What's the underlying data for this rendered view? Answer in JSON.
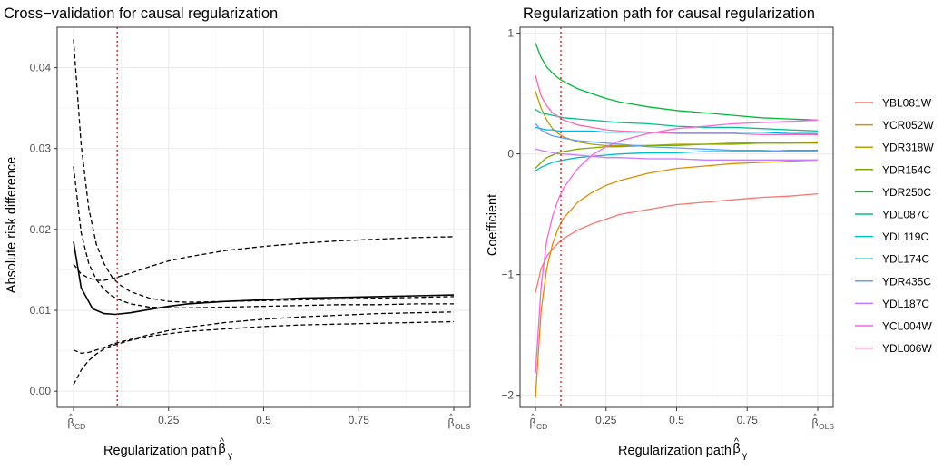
{
  "chart_data": [
    {
      "type": "line",
      "title": "Cross−validation for causal regularization",
      "xlabel_main": "Regularization path ",
      "xlabel_beta": "β",
      "xlabel_hat": "^",
      "xlabel_sub": "γ",
      "ylabel": "Absolute risk difference",
      "xlim": [
        0,
        1
      ],
      "ylim": [
        -0.002,
        0.045
      ],
      "x_ticks": [
        {
          "value": 0,
          "main": "β",
          "hat": "^",
          "sub": "CD"
        },
        {
          "value": 0.25,
          "main": "0.25"
        },
        {
          "value": 0.5,
          "main": "0.5"
        },
        {
          "value": 0.75,
          "main": "0.75"
        },
        {
          "value": 1,
          "main": "β",
          "hat": "^",
          "sub": "OLS"
        }
      ],
      "y_ticks": [
        {
          "value": 0,
          "label": "0.00"
        },
        {
          "value": 0.01,
          "label": "0.01"
        },
        {
          "value": 0.02,
          "label": "0.02"
        },
        {
          "value": 0.03,
          "label": "0.03"
        },
        {
          "value": 0.04,
          "label": "0.04"
        }
      ],
      "vline": {
        "x": 0.115,
        "color": "#ff0000"
      },
      "grid": true,
      "series": [
        {
          "style": "solid",
          "color": "#000000",
          "x": [
            0,
            0.02,
            0.05,
            0.08,
            0.11,
            0.15,
            0.2,
            0.25,
            0.3,
            0.4,
            0.5,
            0.6,
            0.7,
            0.8,
            0.9,
            1.0
          ],
          "y": [
            0.0185,
            0.0128,
            0.0102,
            0.0096,
            0.0095,
            0.0097,
            0.0101,
            0.0105,
            0.0108,
            0.0111,
            0.0113,
            0.0115,
            0.0116,
            0.0117,
            0.0118,
            0.0119
          ]
        },
        {
          "style": "dashed",
          "color": "#000000",
          "x": [
            0,
            0.02,
            0.04,
            0.06,
            0.08,
            0.1,
            0.12,
            0.15,
            0.2,
            0.25,
            0.3,
            0.4,
            0.5,
            0.6,
            0.7,
            0.8,
            0.9,
            1.0
          ],
          "y": [
            0.0435,
            0.0305,
            0.0226,
            0.0182,
            0.0158,
            0.0142,
            0.0132,
            0.0123,
            0.0115,
            0.0111,
            0.011,
            0.0111,
            0.0112,
            0.0113,
            0.0114,
            0.0115,
            0.0116,
            0.0117
          ]
        },
        {
          "style": "dashed",
          "color": "#000000",
          "x": [
            0,
            0.02,
            0.04,
            0.06,
            0.08,
            0.1,
            0.12,
            0.15,
            0.2,
            0.25,
            0.3,
            0.4,
            0.5,
            0.6,
            0.7,
            0.8,
            0.9,
            1.0
          ],
          "y": [
            0.0278,
            0.0196,
            0.0158,
            0.0138,
            0.0126,
            0.0118,
            0.0113,
            0.0108,
            0.0104,
            0.0103,
            0.0103,
            0.0104,
            0.0105,
            0.0106,
            0.0107,
            0.0107,
            0.0108,
            0.0108
          ]
        },
        {
          "style": "dashed",
          "color": "#000000",
          "x": [
            0,
            0.02,
            0.04,
            0.06,
            0.08,
            0.1,
            0.15,
            0.2,
            0.25,
            0.3,
            0.4,
            0.5,
            0.6,
            0.7,
            0.8,
            0.9,
            1.0
          ],
          "y": [
            0.0157,
            0.0145,
            0.014,
            0.0137,
            0.0137,
            0.0139,
            0.0146,
            0.0154,
            0.0161,
            0.0166,
            0.0174,
            0.0179,
            0.0183,
            0.0186,
            0.0188,
            0.019,
            0.0191
          ]
        },
        {
          "style": "dashed",
          "color": "#000000",
          "x": [
            0,
            0.02,
            0.04,
            0.06,
            0.08,
            0.1,
            0.15,
            0.2,
            0.25,
            0.3,
            0.4,
            0.5,
            0.6,
            0.7,
            0.8,
            0.9,
            1.0
          ],
          "y": [
            0.0051,
            0.0047,
            0.0048,
            0.0051,
            0.0054,
            0.0058,
            0.0064,
            0.007,
            0.0075,
            0.0079,
            0.0085,
            0.0089,
            0.0092,
            0.0094,
            0.0096,
            0.0097,
            0.0098
          ]
        },
        {
          "style": "dashed",
          "color": "#000000",
          "x": [
            0,
            0.02,
            0.04,
            0.06,
            0.08,
            0.1,
            0.15,
            0.2,
            0.25,
            0.3,
            0.4,
            0.5,
            0.6,
            0.7,
            0.8,
            0.9,
            1.0
          ],
          "y": [
            0.0008,
            0.0026,
            0.0038,
            0.0046,
            0.0052,
            0.0056,
            0.0063,
            0.0068,
            0.0071,
            0.0074,
            0.0077,
            0.008,
            0.0082,
            0.0083,
            0.0084,
            0.0085,
            0.0086
          ]
        }
      ]
    },
    {
      "type": "line",
      "title": "Regularization path for causal regularization",
      "xlabel_main": "Regularization path ",
      "xlabel_beta": "β",
      "xlabel_hat": "^",
      "xlabel_sub": "γ",
      "ylabel": "Coefficient",
      "xlim": [
        0,
        1
      ],
      "ylim": [
        -2.1,
        1.05
      ],
      "x_ticks": [
        {
          "value": 0,
          "main": "β",
          "hat": "^",
          "sub": "CD"
        },
        {
          "value": 0.25,
          "main": "0.25"
        },
        {
          "value": 0.5,
          "main": "0.5"
        },
        {
          "value": 0.75,
          "main": "0.75"
        },
        {
          "value": 1,
          "main": "β",
          "hat": "^",
          "sub": "OLS"
        }
      ],
      "y_ticks": [
        {
          "value": -2,
          "label": "−2"
        },
        {
          "value": -1,
          "label": "−1"
        },
        {
          "value": 0,
          "label": "0"
        },
        {
          "value": 1,
          "label": "1"
        }
      ],
      "vline": {
        "x": 0.09,
        "color": "#ff0000"
      },
      "grid": true,
      "x": [
        0,
        0.02,
        0.04,
        0.06,
        0.08,
        0.1,
        0.15,
        0.2,
        0.25,
        0.3,
        0.4,
        0.5,
        0.6,
        0.7,
        0.8,
        0.9,
        1.0
      ],
      "series": [
        {
          "name": "YBL081W",
          "color": "#F8766D",
          "values": [
            -1.15,
            -0.95,
            -0.85,
            -0.79,
            -0.74,
            -0.7,
            -0.63,
            -0.58,
            -0.54,
            -0.5,
            -0.46,
            -0.42,
            -0.4,
            -0.38,
            -0.36,
            -0.35,
            -0.33
          ]
        },
        {
          "name": "YCR052W",
          "color": "#DE8C00",
          "values": [
            -2.02,
            -1.3,
            -0.95,
            -0.75,
            -0.62,
            -0.53,
            -0.4,
            -0.32,
            -0.26,
            -0.22,
            -0.16,
            -0.12,
            -0.1,
            -0.08,
            -0.07,
            -0.06,
            -0.05
          ]
        },
        {
          "name": "YDR318W",
          "color": "#B79F00",
          "values": [
            0.52,
            0.38,
            0.28,
            0.21,
            0.17,
            0.14,
            0.1,
            0.08,
            0.07,
            0.07,
            0.07,
            0.08,
            0.08,
            0.09,
            0.09,
            0.09,
            0.1
          ]
        },
        {
          "name": "YDR154C",
          "color": "#7CAE00",
          "values": [
            -0.12,
            -0.07,
            -0.03,
            -0.01,
            0.01,
            0.02,
            0.04,
            0.05,
            0.06,
            0.06,
            0.07,
            0.07,
            0.08,
            0.08,
            0.09,
            0.09,
            0.09
          ]
        },
        {
          "name": "YDR250C",
          "color": "#00BA38",
          "values": [
            0.92,
            0.8,
            0.72,
            0.67,
            0.63,
            0.6,
            0.54,
            0.5,
            0.46,
            0.43,
            0.39,
            0.36,
            0.34,
            0.32,
            0.3,
            0.29,
            0.28
          ]
        },
        {
          "name": "YDL087C",
          "color": "#00C08B",
          "values": [
            0.37,
            0.34,
            0.33,
            0.32,
            0.31,
            0.3,
            0.29,
            0.28,
            0.27,
            0.26,
            0.25,
            0.23,
            0.22,
            0.22,
            0.21,
            0.2,
            0.19
          ]
        },
        {
          "name": "YDL119C",
          "color": "#00BFC4",
          "values": [
            -0.14,
            -0.11,
            -0.09,
            -0.07,
            -0.06,
            -0.05,
            -0.03,
            -0.02,
            -0.01,
            0.0,
            0.01,
            0.01,
            0.02,
            0.02,
            0.02,
            0.03,
            0.03
          ]
        },
        {
          "name": "YDL174C",
          "color": "#00B4F0",
          "values": [
            0.22,
            0.21,
            0.2,
            0.2,
            0.19,
            0.19,
            0.19,
            0.19,
            0.18,
            0.18,
            0.18,
            0.18,
            0.18,
            0.18,
            0.18,
            0.17,
            0.17
          ]
        },
        {
          "name": "YDR435C",
          "color": "#619CFF",
          "values": [
            0.25,
            0.2,
            0.17,
            0.15,
            0.14,
            0.13,
            0.11,
            0.1,
            0.09,
            0.08,
            0.06,
            0.05,
            0.04,
            0.03,
            0.03,
            0.02,
            0.02
          ]
        },
        {
          "name": "YDL187C",
          "color": "#C77CFF",
          "values": [
            0.04,
            0.03,
            0.02,
            0.01,
            0.0,
            -0.0,
            -0.01,
            -0.02,
            -0.03,
            -0.03,
            -0.04,
            -0.04,
            -0.05,
            -0.05,
            -0.05,
            -0.05,
            -0.05
          ]
        },
        {
          "name": "YCL004W",
          "color": "#F564E3",
          "values": [
            -1.82,
            -1.1,
            -0.72,
            -0.52,
            -0.38,
            -0.28,
            -0.12,
            -0.01,
            0.06,
            0.11,
            0.17,
            0.21,
            0.23,
            0.25,
            0.26,
            0.27,
            0.28
          ]
        },
        {
          "name": "YDL006W",
          "color": "#FF64B0",
          "values": [
            0.65,
            0.48,
            0.4,
            0.34,
            0.31,
            0.28,
            0.24,
            0.22,
            0.2,
            0.19,
            0.18,
            0.17,
            0.17,
            0.17,
            0.16,
            0.16,
            0.16
          ]
        }
      ]
    }
  ]
}
